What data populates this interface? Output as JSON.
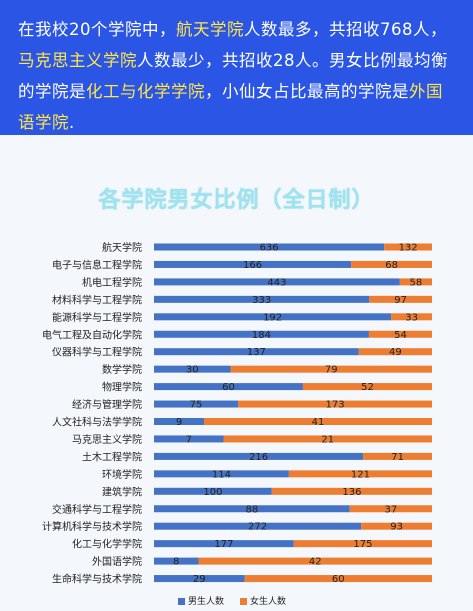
{
  "summary": {
    "p1": "在我校20个学院中，",
    "h1": "航天学院",
    "p2": "人数最多，共招收768人，",
    "h2": "马克思主义学院",
    "p3": "人数最少，共招收28人。男女比例最均衡的学院是",
    "h3": "化工与化学学院",
    "p4": "，小仙女占比最高的学院是",
    "h4": "外国语学院",
    "p5": "."
  },
  "colors": {
    "male": "#4472c4",
    "female": "#ed7d31",
    "banner": "#2a55e5",
    "highlight": "#ffe74a"
  },
  "chart_data": {
    "type": "bar",
    "orientation": "horizontal",
    "stacked": "percent",
    "title": "各学院男女比例（全日制）",
    "categories": [
      "航天学院",
      "电子与信息工程学院",
      "机电工程学院",
      "材料科学与工程学院",
      "能源科学与工程学院",
      "电气工程及自动化学院",
      "仪器科学与工程学院",
      "数学学院",
      "物理学院",
      "经济与管理学院",
      "人文社科与法学学院",
      "马克思主义学院",
      "土木工程学院",
      "环境学院",
      "建筑学院",
      "交通科学与工程学院",
      "计算机科学与技术学院",
      "化工与化学学院",
      "外国语学院",
      "生命科学与技术学院"
    ],
    "series": [
      {
        "name": "男生人数",
        "color": "#4472c4",
        "values": [
          636,
          166,
          443,
          333,
          192,
          184,
          137,
          30,
          60,
          75,
          9,
          7,
          216,
          114,
          100,
          88,
          272,
          177,
          8,
          29
        ]
      },
      {
        "name": "女生人数",
        "color": "#ed7d31",
        "values": [
          132,
          68,
          58,
          97,
          33,
          54,
          49,
          79,
          52,
          173,
          41,
          21,
          71,
          121,
          136,
          37,
          93,
          175,
          42,
          60
        ]
      }
    ],
    "legend": "bottom"
  }
}
